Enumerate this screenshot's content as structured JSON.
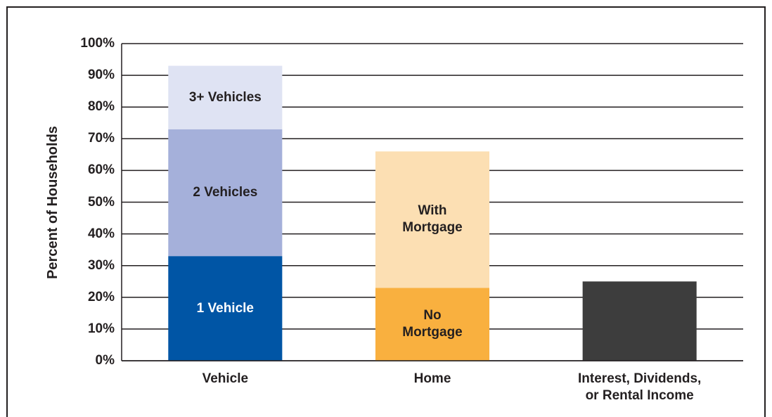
{
  "chart_data": {
    "type": "stacked_bar",
    "ylabel": "Percent of Households",
    "categories": [
      "Vehicle",
      "Home",
      "Interest, Dividends,\nor Rental Income"
    ],
    "series": [
      {
        "name": "1 Vehicle",
        "color": "#0055a5",
        "values": [
          33,
          null,
          null
        ]
      },
      {
        "name": "2 Vehicles",
        "color": "#a5b0da",
        "values": [
          40,
          null,
          null
        ]
      },
      {
        "name": "3+ Vehicles",
        "color": "#dfe3f3",
        "values": [
          20,
          null,
          null
        ]
      },
      {
        "name": "No\nMortgage",
        "color": "#f9b03f",
        "values": [
          null,
          23,
          null
        ]
      },
      {
        "name": "With\nMortgage",
        "color": "#fcdfb3",
        "values": [
          null,
          43,
          null
        ]
      },
      {
        "color": "#3d3d3d",
        "values": [
          null,
          null,
          25
        ]
      }
    ],
    "ylim": [
      0,
      100
    ],
    "yticks": [
      {
        "value": 0,
        "label": "0%"
      },
      {
        "value": 10,
        "label": "10%"
      },
      {
        "value": 20,
        "label": "20%"
      },
      {
        "value": 30,
        "label": "30%"
      },
      {
        "value": 40,
        "label": "40%"
      },
      {
        "value": 50,
        "label": "50%"
      },
      {
        "value": 60,
        "label": "60%"
      },
      {
        "value": 70,
        "label": "70%"
      },
      {
        "value": 80,
        "label": "80%"
      },
      {
        "value": 90,
        "label": "90%"
      },
      {
        "value": 100,
        "label": "100%"
      }
    ],
    "grid": true
  }
}
